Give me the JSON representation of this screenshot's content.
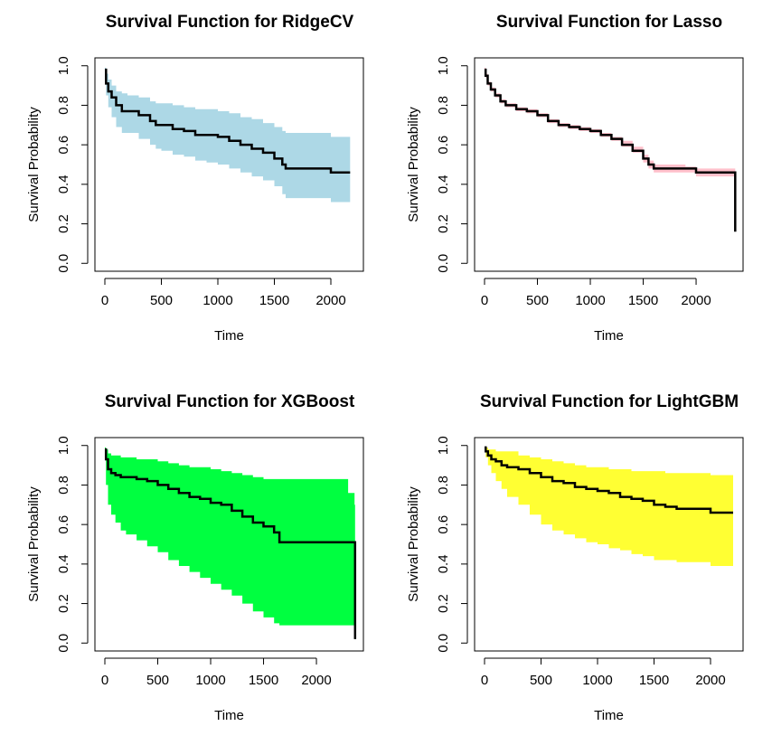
{
  "chart_data": [
    {
      "type": "line",
      "title": "Survival Function for RidgeCV",
      "xlabel": "Time",
      "ylabel": "Survival Probability",
      "xlim": [
        0,
        2200
      ],
      "ylim": [
        0,
        1
      ],
      "xticks": [
        "0",
        "500",
        "1000",
        "1500",
        "2000"
      ],
      "yticks": [
        "0.0",
        "0.2",
        "0.4",
        "0.6",
        "0.8",
        "1.0"
      ],
      "band_color": "#add8e6",
      "line_color": "#000000",
      "series": [
        {
          "x": [
            0,
            10,
            30,
            60,
            100,
            150,
            200,
            300,
            400,
            450,
            500,
            600,
            700,
            800,
            900,
            1000,
            1100,
            1200,
            1300,
            1400,
            1500,
            1570,
            1600,
            1700,
            1900,
            2000,
            2170
          ],
          "y": [
            0.98,
            0.91,
            0.87,
            0.84,
            0.8,
            0.77,
            0.77,
            0.75,
            0.72,
            0.7,
            0.7,
            0.68,
            0.67,
            0.65,
            0.65,
            0.64,
            0.62,
            0.6,
            0.58,
            0.56,
            0.53,
            0.5,
            0.48,
            0.48,
            0.48,
            0.46,
            0.46
          ],
          "lower": [
            0.96,
            0.85,
            0.79,
            0.74,
            0.69,
            0.66,
            0.66,
            0.63,
            0.6,
            0.58,
            0.57,
            0.55,
            0.54,
            0.52,
            0.51,
            0.5,
            0.48,
            0.46,
            0.44,
            0.42,
            0.39,
            0.35,
            0.33,
            0.33,
            0.33,
            0.31,
            0.31
          ],
          "upper": [
            0.99,
            0.96,
            0.93,
            0.9,
            0.87,
            0.86,
            0.85,
            0.84,
            0.82,
            0.81,
            0.81,
            0.8,
            0.79,
            0.78,
            0.78,
            0.77,
            0.76,
            0.74,
            0.73,
            0.71,
            0.69,
            0.67,
            0.66,
            0.66,
            0.66,
            0.64,
            0.64
          ]
        }
      ]
    },
    {
      "type": "line",
      "title": "Survival Function for Lasso",
      "xlabel": "Time",
      "ylabel": "Survival Probability",
      "xlim": [
        0,
        2350
      ],
      "ylim": [
        0,
        1
      ],
      "xticks": [
        "0",
        "500",
        "1000",
        "1500",
        "2000"
      ],
      "yticks": [
        "0.0",
        "0.2",
        "0.4",
        "0.6",
        "0.8",
        "1.0"
      ],
      "band_color": "#ffc0cb",
      "line_color": "#000000",
      "series": [
        {
          "x": [
            0,
            10,
            30,
            60,
            100,
            150,
            200,
            300,
            400,
            500,
            600,
            700,
            800,
            900,
            1000,
            1100,
            1200,
            1300,
            1400,
            1500,
            1550,
            1600,
            1700,
            1900,
            2000,
            2200,
            2360,
            2370
          ],
          "y": [
            0.98,
            0.95,
            0.91,
            0.88,
            0.85,
            0.82,
            0.8,
            0.78,
            0.77,
            0.75,
            0.72,
            0.7,
            0.69,
            0.68,
            0.67,
            0.65,
            0.63,
            0.6,
            0.57,
            0.53,
            0.5,
            0.48,
            0.48,
            0.48,
            0.46,
            0.46,
            0.46,
            0.16
          ],
          "lower": [
            0.97,
            0.94,
            0.9,
            0.87,
            0.84,
            0.81,
            0.79,
            0.77,
            0.76,
            0.74,
            0.71,
            0.69,
            0.68,
            0.67,
            0.66,
            0.64,
            0.62,
            0.59,
            0.56,
            0.51,
            0.48,
            0.46,
            0.46,
            0.46,
            0.44,
            0.44,
            0.3,
            0.16
          ],
          "upper": [
            0.99,
            0.96,
            0.92,
            0.89,
            0.86,
            0.83,
            0.81,
            0.79,
            0.78,
            0.76,
            0.73,
            0.71,
            0.7,
            0.69,
            0.68,
            0.66,
            0.64,
            0.62,
            0.59,
            0.55,
            0.52,
            0.5,
            0.5,
            0.49,
            0.48,
            0.48,
            0.48,
            0.16
          ]
        }
      ]
    },
    {
      "type": "line",
      "title": "Survival Function for XGBoost",
      "xlabel": "Time",
      "ylabel": "Survival Probability",
      "xlim": [
        0,
        2350
      ],
      "ylim": [
        0,
        1
      ],
      "xticks": [
        "0",
        "500",
        "1000",
        "1500",
        "2000"
      ],
      "yticks": [
        "0.0",
        "0.2",
        "0.4",
        "0.6",
        "0.8",
        "1.0"
      ],
      "band_color": "#00ff40",
      "line_color": "#000000",
      "series": [
        {
          "x": [
            0,
            10,
            30,
            60,
            100,
            150,
            200,
            300,
            400,
            500,
            600,
            700,
            800,
            900,
            1000,
            1100,
            1200,
            1300,
            1400,
            1500,
            1600,
            1650,
            1800,
            2000,
            2300,
            2360,
            2365
          ],
          "y": [
            0.98,
            0.93,
            0.88,
            0.86,
            0.85,
            0.84,
            0.84,
            0.83,
            0.82,
            0.8,
            0.78,
            0.76,
            0.74,
            0.73,
            0.71,
            0.7,
            0.67,
            0.64,
            0.61,
            0.59,
            0.56,
            0.51,
            0.51,
            0.51,
            0.51,
            0.51,
            0.02
          ],
          "lower": [
            0.95,
            0.8,
            0.7,
            0.65,
            0.61,
            0.57,
            0.55,
            0.52,
            0.49,
            0.46,
            0.42,
            0.39,
            0.36,
            0.33,
            0.3,
            0.27,
            0.24,
            0.2,
            0.16,
            0.13,
            0.1,
            0.09,
            0.09,
            0.09,
            0.09,
            0.02,
            0.02
          ],
          "upper": [
            0.99,
            0.98,
            0.96,
            0.95,
            0.95,
            0.94,
            0.94,
            0.93,
            0.93,
            0.92,
            0.91,
            0.9,
            0.89,
            0.89,
            0.88,
            0.87,
            0.86,
            0.85,
            0.84,
            0.83,
            0.83,
            0.83,
            0.83,
            0.83,
            0.76,
            0.7,
            0.27
          ]
        }
      ]
    },
    {
      "type": "line",
      "title": "Survival Function for LightGBM",
      "xlabel": "Time",
      "ylabel": "Survival Probability",
      "xlim": [
        0,
        2200
      ],
      "ylim": [
        0,
        1
      ],
      "xticks": [
        "0",
        "500",
        "1000",
        "1500",
        "2000"
      ],
      "yticks": [
        "0.0",
        "0.2",
        "0.4",
        "0.6",
        "0.8",
        "1.0"
      ],
      "band_color": "#ffff33",
      "line_color": "#000000",
      "series": [
        {
          "x": [
            0,
            10,
            30,
            60,
            100,
            150,
            200,
            300,
            400,
            500,
            600,
            700,
            800,
            900,
            1000,
            1100,
            1200,
            1300,
            1400,
            1500,
            1600,
            1700,
            1800,
            2000,
            2200
          ],
          "y": [
            0.99,
            0.97,
            0.95,
            0.93,
            0.92,
            0.9,
            0.89,
            0.88,
            0.86,
            0.84,
            0.82,
            0.81,
            0.79,
            0.78,
            0.77,
            0.76,
            0.74,
            0.73,
            0.72,
            0.7,
            0.69,
            0.68,
            0.68,
            0.66,
            0.66
          ],
          "lower": [
            0.98,
            0.94,
            0.9,
            0.86,
            0.82,
            0.78,
            0.74,
            0.7,
            0.65,
            0.6,
            0.57,
            0.55,
            0.53,
            0.51,
            0.5,
            0.48,
            0.47,
            0.45,
            0.44,
            0.42,
            0.42,
            0.41,
            0.41,
            0.39,
            0.39
          ],
          "upper": [
            0.99,
            0.99,
            0.98,
            0.98,
            0.97,
            0.97,
            0.97,
            0.95,
            0.94,
            0.93,
            0.92,
            0.91,
            0.9,
            0.89,
            0.89,
            0.88,
            0.88,
            0.87,
            0.87,
            0.87,
            0.86,
            0.86,
            0.86,
            0.85,
            0.85
          ]
        }
      ]
    }
  ]
}
